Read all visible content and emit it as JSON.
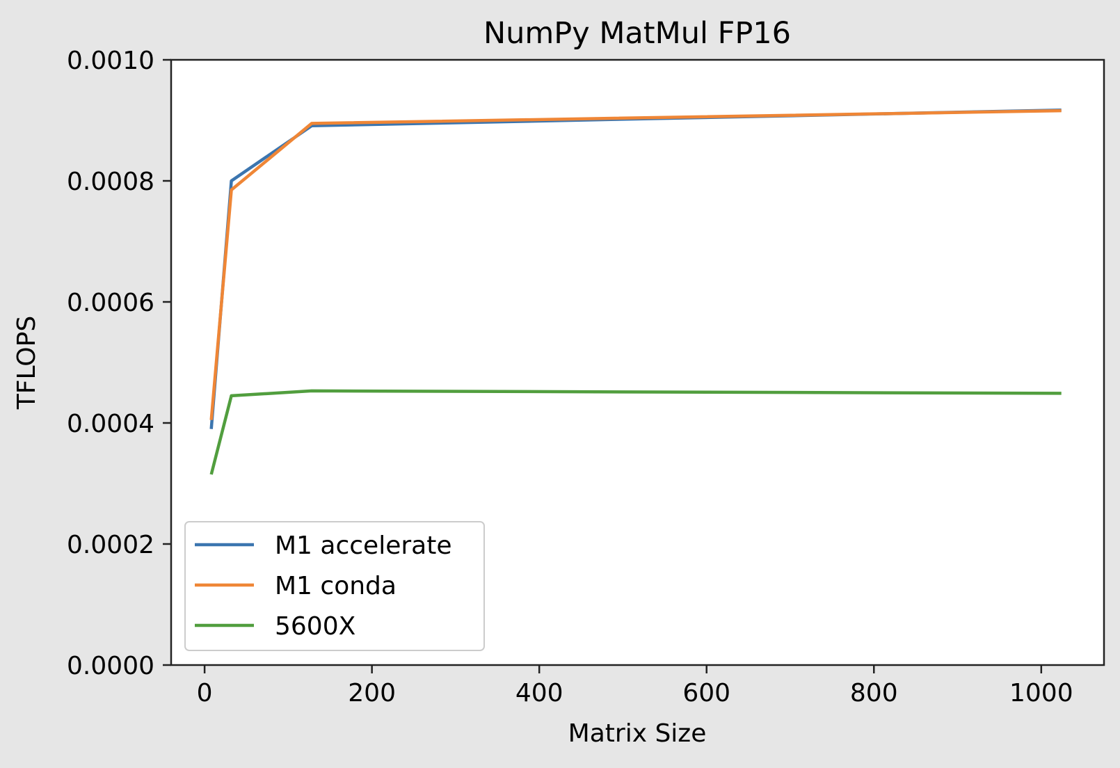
{
  "chart_data": {
    "type": "line",
    "title": "NumPy MatMul FP16",
    "xlabel": "Matrix Size",
    "ylabel": "TFLOPS",
    "xlim": [
      -40,
      1075
    ],
    "ylim": [
      0.0,
      0.001
    ],
    "x_ticks": [
      {
        "value": 0,
        "label": "0"
      },
      {
        "value": 200,
        "label": "200"
      },
      {
        "value": 400,
        "label": "400"
      },
      {
        "value": 600,
        "label": "600"
      },
      {
        "value": 800,
        "label": "800"
      },
      {
        "value": 1000,
        "label": "1000"
      }
    ],
    "y_ticks": [
      {
        "value": 0.0,
        "label": "0.0000"
      },
      {
        "value": 0.0002,
        "label": "0.0002"
      },
      {
        "value": 0.0004,
        "label": "0.0004"
      },
      {
        "value": 0.0006,
        "label": "0.0006"
      },
      {
        "value": 0.0008,
        "label": "0.0008"
      },
      {
        "value": 0.001,
        "label": "0.0010"
      }
    ],
    "grid": false,
    "legend": {
      "placement": "lower-left"
    },
    "series": [
      {
        "name": "M1 accelerate",
        "color": "#3b75af",
        "x": [
          8,
          32,
          128,
          1024
        ],
        "y": [
          0.00039,
          0.0008,
          0.000891,
          0.000917
        ]
      },
      {
        "name": "M1 conda",
        "color": "#ef8636",
        "x": [
          8,
          32,
          128,
          1024
        ],
        "y": [
          0.000405,
          0.000785,
          0.000895,
          0.000916
        ]
      },
      {
        "name": "5600X",
        "color": "#519e3e",
        "x": [
          8,
          32,
          128,
          1024
        ],
        "y": [
          0.000315,
          0.000445,
          0.000453,
          0.000449
        ]
      }
    ]
  }
}
